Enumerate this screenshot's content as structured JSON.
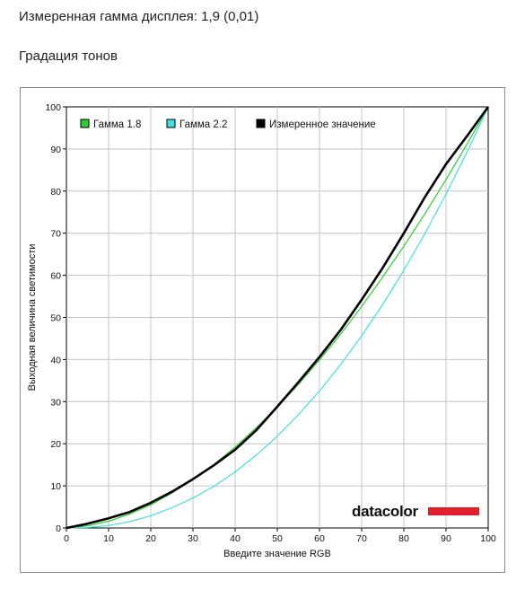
{
  "header": {
    "measured_gamma": "Измеренная гамма дисплея: 1,9 (0,01)",
    "section_title": "Градация тонов"
  },
  "logo": {
    "text": "datacolor",
    "bar_color": "#e0202a"
  },
  "chart_data": {
    "type": "line",
    "xlabel": "Введите значение RGB",
    "ylabel": "Выходная величина светимости",
    "xlim": [
      0,
      100
    ],
    "ylim": [
      0,
      100
    ],
    "xticks": [
      0,
      10,
      20,
      30,
      40,
      50,
      60,
      70,
      80,
      90,
      100
    ],
    "yticks": [
      0,
      10,
      20,
      30,
      40,
      50,
      60,
      70,
      80,
      90,
      100
    ],
    "grid": true,
    "legend_position": "top-left",
    "series": [
      {
        "name": "Гамма 1.8",
        "color": "#2ecc2e",
        "x": [
          0,
          5,
          10,
          15,
          20,
          25,
          30,
          35,
          40,
          45,
          50,
          55,
          60,
          65,
          70,
          75,
          80,
          85,
          90,
          95,
          100
        ],
        "y": [
          0,
          0.5,
          1.6,
          3.3,
          5.5,
          8.3,
          11.5,
          15.1,
          19.2,
          23.8,
          28.7,
          34.1,
          39.9,
          46.0,
          52.6,
          59.6,
          66.9,
          74.6,
          82.7,
          91.2,
          100
        ]
      },
      {
        "name": "Гамма 2.2",
        "color": "#40e0e0",
        "x": [
          0,
          5,
          10,
          15,
          20,
          25,
          30,
          35,
          40,
          45,
          50,
          55,
          60,
          65,
          70,
          75,
          80,
          85,
          90,
          95,
          100
        ],
        "y": [
          0,
          0.1,
          0.6,
          1.5,
          2.9,
          4.8,
          7.1,
          9.9,
          13.3,
          17.3,
          21.8,
          26.9,
          32.5,
          38.8,
          45.6,
          53.1,
          61.2,
          69.9,
          79.3,
          89.3,
          100
        ]
      },
      {
        "name": "Измеренное значение",
        "color": "#000000",
        "x": [
          0,
          5,
          10,
          15,
          20,
          25,
          30,
          35,
          40,
          45,
          50,
          55,
          60,
          65,
          70,
          75,
          80,
          85,
          90,
          95,
          100
        ],
        "y": [
          0,
          1.0,
          2.3,
          3.8,
          6.0,
          8.6,
          11.6,
          14.9,
          18.6,
          23.2,
          28.8,
          34.6,
          40.6,
          47.0,
          54.2,
          61.8,
          70.0,
          78.6,
          86.4,
          93.1,
          100
        ]
      }
    ]
  }
}
